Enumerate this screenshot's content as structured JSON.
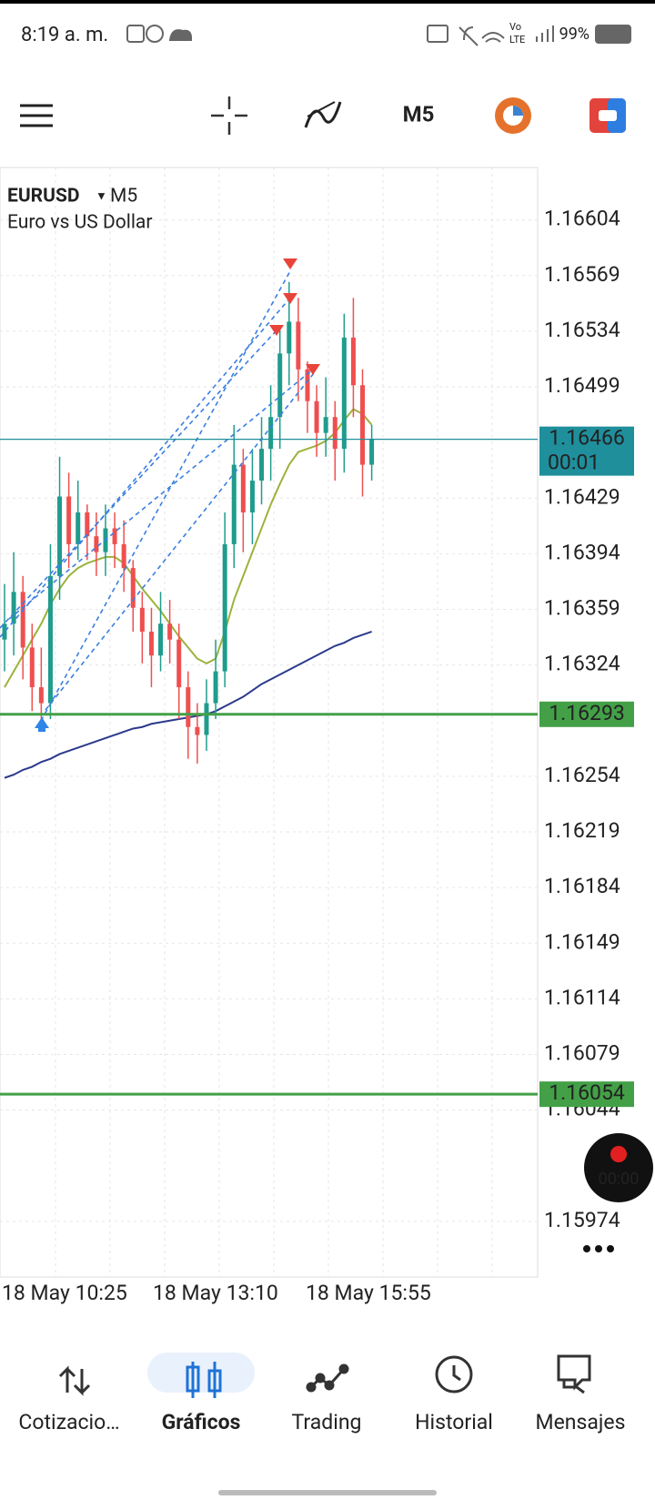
{
  "status_bar": {
    "time": "8:19 a. m.",
    "battery": "99%"
  },
  "toolbar": {
    "timeframe": "M5"
  },
  "chart_data": {
    "type": "candlestick",
    "symbol": "EURUSD",
    "timeframe": "M5",
    "description": "Euro vs US Dollar",
    "bull_color": "#1f9c8c",
    "bear_color": "#ef4f4f",
    "open": [
      1.1634,
      1.1635,
      1.1637,
      1.16335,
      1.1631,
      1.163,
      1.1638,
      1.1643,
      1.164,
      1.1642,
      1.16405,
      1.16395,
      1.1641,
      1.164,
      1.16385,
      1.1636,
      1.16345,
      1.1633,
      1.1635,
      1.1634,
      1.1631,
      1.16285,
      1.1628,
      1.163,
      1.1632,
      1.164,
      1.1645,
      1.1642,
      1.1644,
      1.1646,
      1.1648,
      1.1652,
      1.1654,
      1.1651,
      1.1649,
      1.1647,
      1.1648,
      1.1646,
      1.1653,
      1.165,
      1.1645
    ],
    "high": [
      1.16375,
      1.16395,
      1.1638,
      1.1635,
      1.16335,
      1.164,
      1.16455,
      1.16445,
      1.1644,
      1.16425,
      1.1642,
      1.16425,
      1.1642,
      1.16415,
      1.1639,
      1.1637,
      1.1636,
      1.1637,
      1.16365,
      1.1635,
      1.1632,
      1.163,
      1.16315,
      1.1634,
      1.1642,
      1.16475,
      1.1646,
      1.1646,
      1.1648,
      1.165,
      1.16535,
      1.16565,
      1.16555,
      1.16515,
      1.165,
      1.16505,
      1.1649,
      1.16545,
      1.16555,
      1.1651,
      1.16475
    ],
    "low": [
      1.1632,
      1.1633,
      1.16315,
      1.16295,
      1.16285,
      1.1629,
      1.16365,
      1.16385,
      1.1639,
      1.1639,
      1.1638,
      1.1638,
      1.16385,
      1.1637,
      1.16345,
      1.16325,
      1.1631,
      1.1632,
      1.16325,
      1.1629,
      1.16265,
      1.16262,
      1.1627,
      1.1629,
      1.1631,
      1.16385,
      1.16395,
      1.164,
      1.16425,
      1.1644,
      1.1646,
      1.165,
      1.1649,
      1.1647,
      1.16455,
      1.16455,
      1.1644,
      1.16445,
      1.1648,
      1.1643,
      1.1644
    ],
    "close": [
      1.1635,
      1.1637,
      1.16335,
      1.1631,
      1.163,
      1.1638,
      1.1643,
      1.164,
      1.1642,
      1.16405,
      1.16395,
      1.1641,
      1.164,
      1.16385,
      1.1636,
      1.16345,
      1.1633,
      1.1635,
      1.1634,
      1.1631,
      1.16285,
      1.1628,
      1.163,
      1.1632,
      1.164,
      1.1645,
      1.1642,
      1.1644,
      1.1646,
      1.1648,
      1.1652,
      1.1654,
      1.1651,
      1.1649,
      1.1647,
      1.1648,
      1.1646,
      1.1653,
      1.165,
      1.1645,
      1.16466
    ],
    "indicators": [
      {
        "color": "#9ab33c",
        "values": [
          1.1631,
          1.1632,
          1.1633,
          1.1634,
          1.1635,
          1.16362,
          1.16372,
          1.1638,
          1.16385,
          1.16388,
          1.1639,
          1.16392,
          1.16392,
          1.16388,
          1.1638,
          1.16372,
          1.16365,
          1.16358,
          1.1635,
          1.16342,
          1.16335,
          1.16328,
          1.16325,
          1.16328,
          1.16345,
          1.16365,
          1.1638,
          1.16395,
          1.1641,
          1.16425,
          1.16438,
          1.1645,
          1.16458,
          1.1646,
          1.16462,
          1.16465,
          1.1647,
          1.16478,
          1.16485,
          1.16482,
          1.16475
        ]
      },
      {
        "color": "#2b3a8c",
        "values": [
          1.16253,
          1.16255,
          1.16258,
          1.1626,
          1.16263,
          1.16265,
          1.16268,
          1.1627,
          1.16272,
          1.16274,
          1.16276,
          1.16278,
          1.1628,
          1.16282,
          1.16284,
          1.16285,
          1.16287,
          1.16288,
          1.16289,
          1.1629,
          1.16291,
          1.16292,
          1.16293,
          1.16295,
          1.16298,
          1.16301,
          1.16304,
          1.16308,
          1.16312,
          1.16315,
          1.16318,
          1.16321,
          1.16324,
          1.16327,
          1.1633,
          1.16333,
          1.16336,
          1.16338,
          1.16341,
          1.16343,
          1.16345
        ]
      }
    ],
    "ylim": [
      1.15939,
      1.16637
    ],
    "yticks": [
      1.16604,
      1.16569,
      1.16534,
      1.16499,
      1.16429,
      1.16394,
      1.16359,
      1.16324,
      1.16254,
      1.16219,
      1.16184,
      1.16149,
      1.16114,
      1.16079,
      1.16044,
      1.15974
    ],
    "grid": true,
    "current_price": {
      "value": 1.16466,
      "timer": "00:01",
      "color": "#1f8f9c"
    },
    "price_lines": [
      {
        "value": 1.16293,
        "color": "#43a047"
      },
      {
        "value": 1.16054,
        "color": "#43a047"
      }
    ],
    "xtick_labels": [
      "18 May 10:25",
      "18 May 13:10",
      "18 May 15:55"
    ]
  },
  "recorder": {
    "time": "00:00"
  },
  "nav": {
    "items": [
      "Cotizacio…",
      "Gráficos",
      "Trading",
      "Historial",
      "Mensajes"
    ],
    "active": 1
  }
}
